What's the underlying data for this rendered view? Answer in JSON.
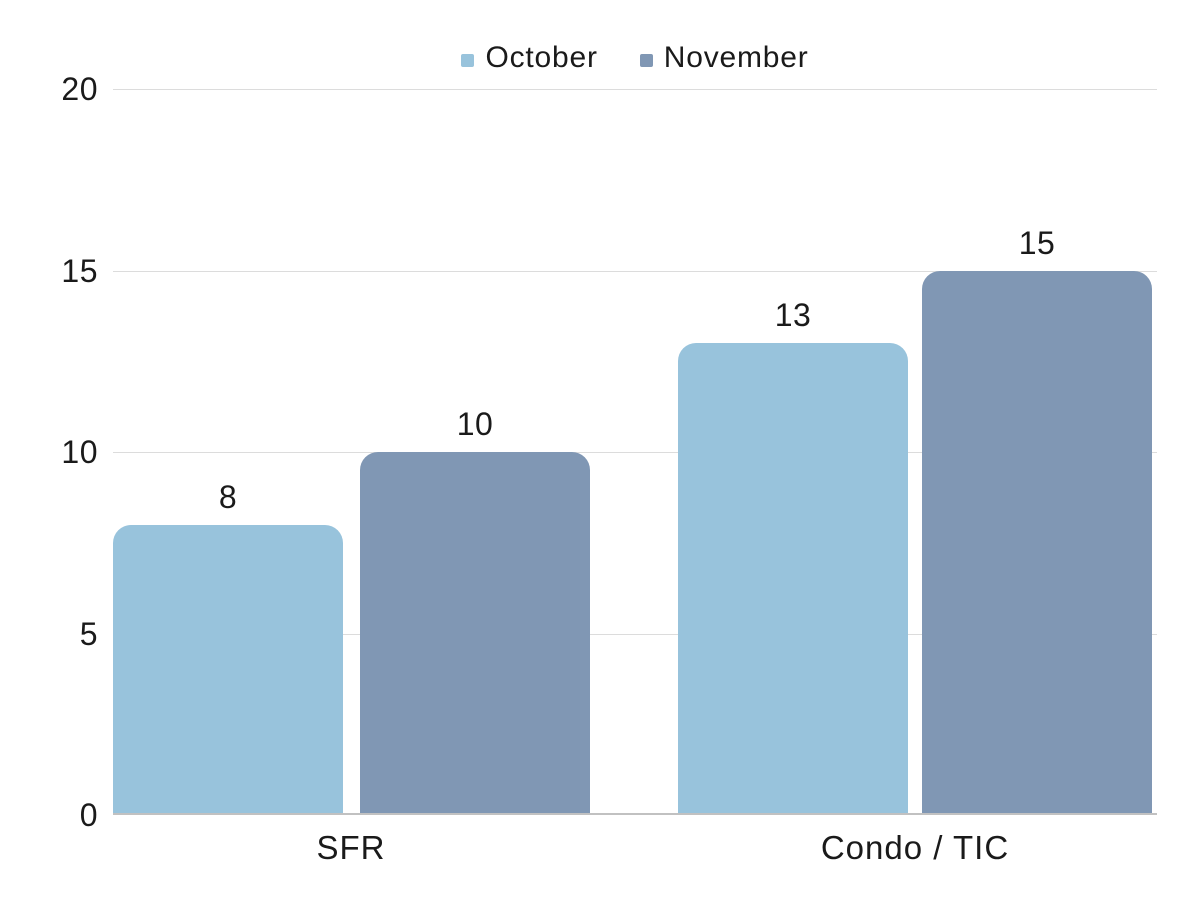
{
  "chart_data": {
    "type": "bar",
    "title": "",
    "categories": [
      "SFR",
      "Condo / TIC"
    ],
    "series": [
      {
        "name": "October",
        "color": "#98C3DC",
        "values": [
          8,
          13
        ]
      },
      {
        "name": "November",
        "color": "#8097B4",
        "values": [
          10,
          15
        ]
      }
    ],
    "value_labels": {
      "shown": true,
      "values": [
        "8",
        "10",
        "13",
        "15"
      ]
    },
    "ylim": [
      0,
      20
    ],
    "yticks": [
      "0",
      "5",
      "10",
      "15",
      "20"
    ],
    "legend_position": "top",
    "grid": "horizontal",
    "colors": {
      "october_bar": "#98C3DC",
      "november_bar": "#8097B4",
      "gridline": "#DCDCDC",
      "axis_baseline": "#C1C1C1",
      "label_text": "#1A1A1A",
      "background": "#FFFFFF"
    }
  }
}
